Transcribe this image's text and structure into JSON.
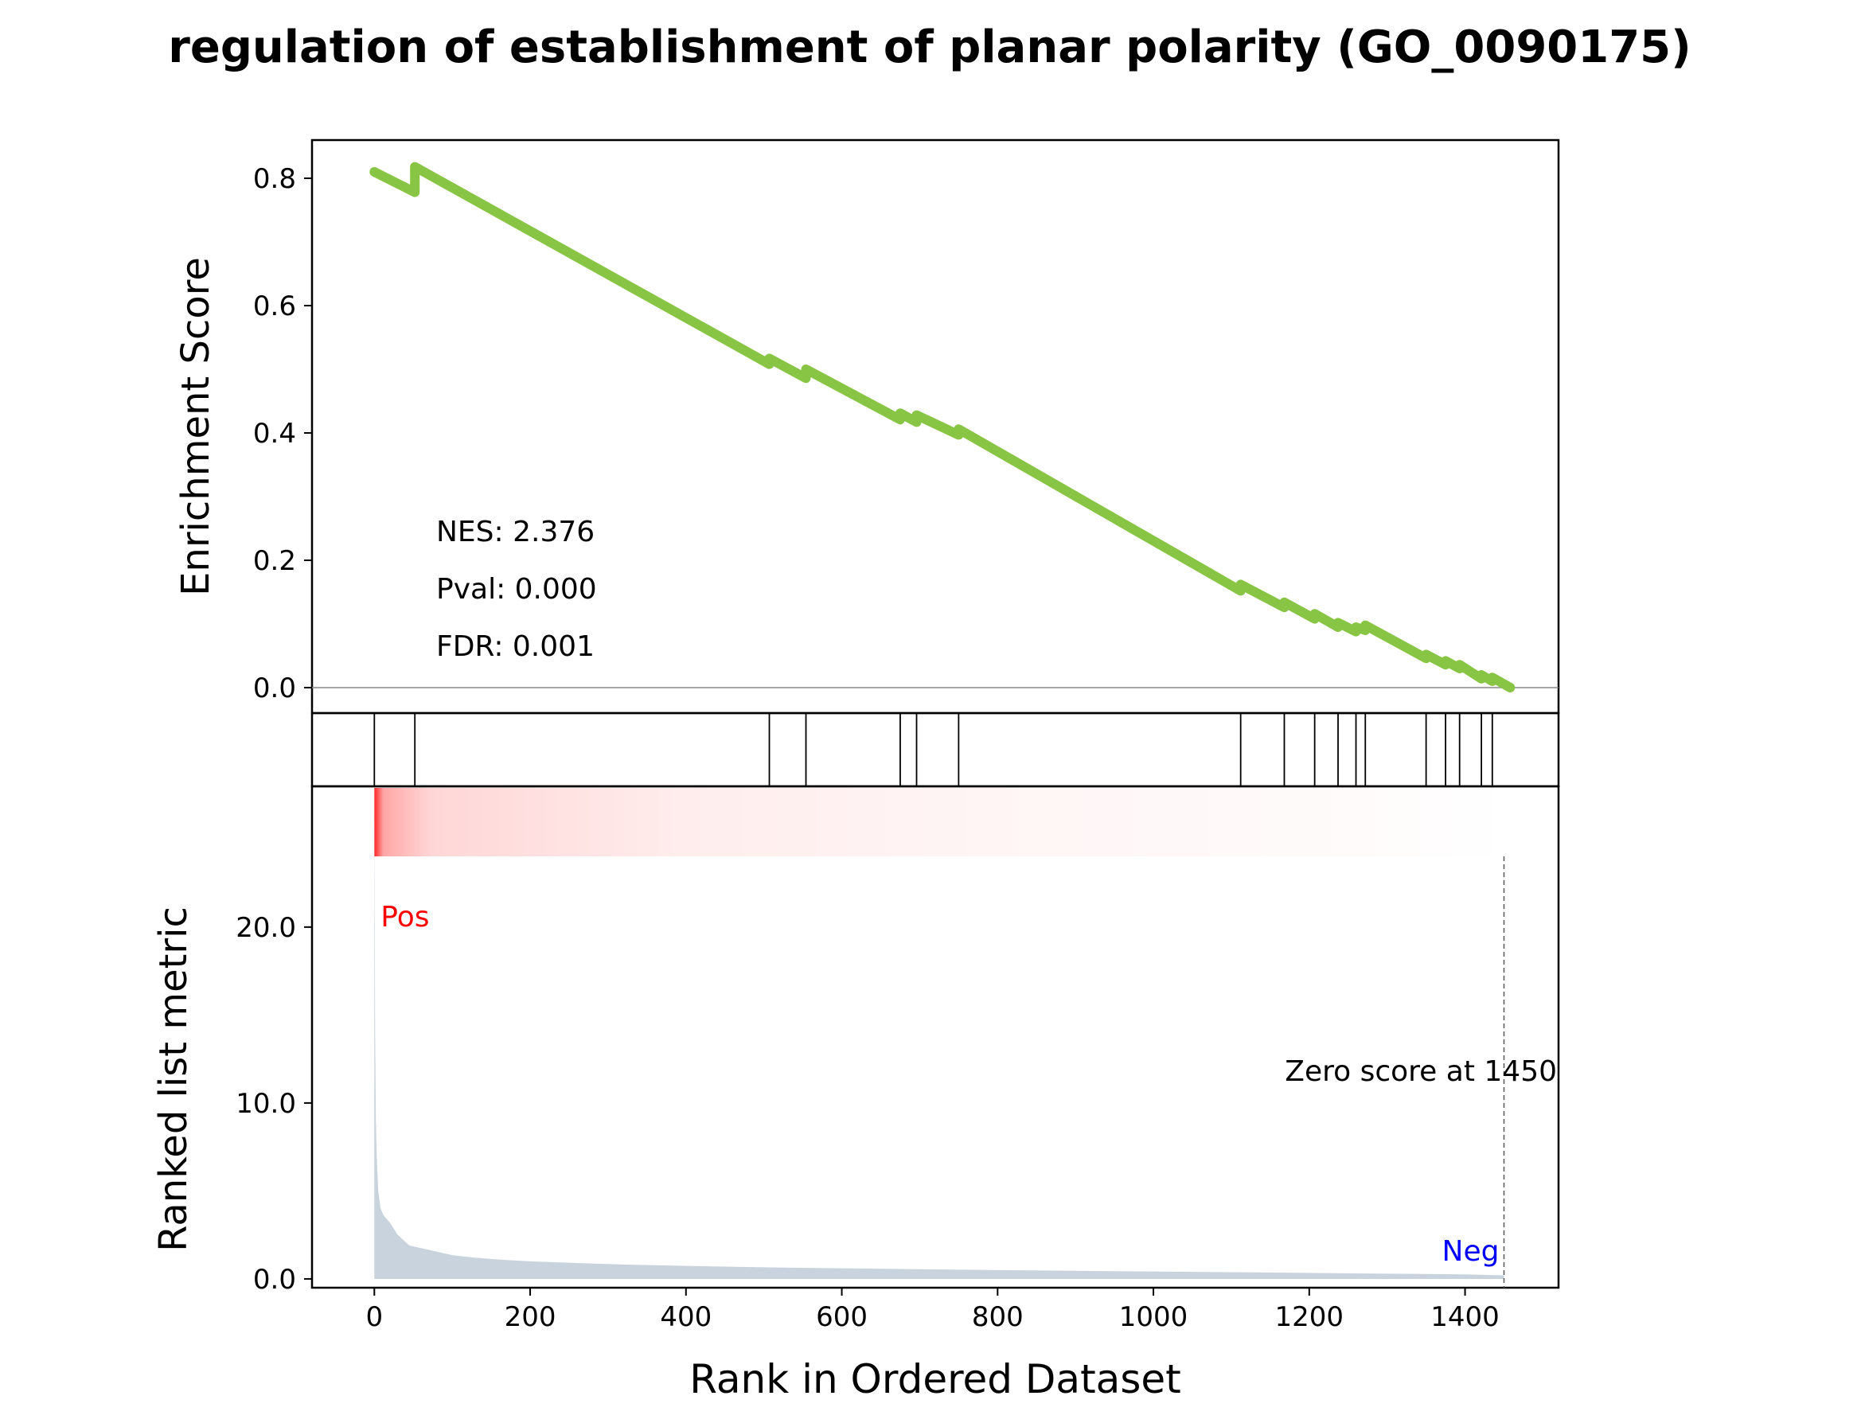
{
  "chart_data": {
    "type": "line",
    "title": "regulation of establishment of planar polarity (GO_0090175)",
    "xlabel": "Rank in Ordered Dataset",
    "ylabel_top": "Enrichment Score",
    "ylabel_bottom": "Ranked list metric",
    "xlim": [
      -80,
      1520
    ],
    "xticks": [
      0,
      200,
      400,
      600,
      800,
      1000,
      1200,
      1400
    ],
    "es_ylim": [
      -0.04,
      0.86
    ],
    "es_yticks": [
      "0.0",
      "0.2",
      "0.4",
      "0.6",
      "0.8"
    ],
    "metric_ylim": [
      -0.5,
      28
    ],
    "metric_yticks": [
      "0.0",
      "10.0",
      "20.0"
    ],
    "stats": {
      "nes": "NES: 2.376",
      "pval": "Pval: 0.000",
      "fdr": "FDR: 0.001"
    },
    "labels": {
      "pos": "Pos",
      "neg": "Neg",
      "zero_score": "Zero score at 1450"
    },
    "zero_score_rank": 1450,
    "hit_ranks": [
      0,
      52,
      507,
      554,
      675,
      696,
      750,
      1112,
      1168,
      1207,
      1237,
      1260,
      1272,
      1350,
      1375,
      1393,
      1421,
      1435
    ],
    "es_curve": {
      "x": [
        0,
        52,
        52,
        507,
        507,
        554,
        554,
        675,
        675,
        696,
        696,
        750,
        750,
        1112,
        1112,
        1168,
        1168,
        1207,
        1207,
        1237,
        1237,
        1260,
        1260,
        1272,
        1272,
        1350,
        1350,
        1375,
        1375,
        1393,
        1393,
        1421,
        1421,
        1435,
        1435,
        1458
      ],
      "y": [
        0.81,
        0.778,
        0.818,
        0.508,
        0.517,
        0.486,
        0.5,
        0.421,
        0.431,
        0.417,
        0.428,
        0.397,
        0.406,
        0.152,
        0.162,
        0.126,
        0.134,
        0.108,
        0.116,
        0.095,
        0.102,
        0.088,
        0.095,
        0.09,
        0.098,
        0.046,
        0.052,
        0.036,
        0.042,
        0.03,
        0.036,
        0.014,
        0.02,
        0.01,
        0.016,
        0.0
      ]
    },
    "metric_curve": {
      "x": [
        0,
        1,
        2,
        3,
        5,
        8,
        12,
        20,
        30,
        45,
        60,
        80,
        100,
        130,
        160,
        200,
        260,
        320,
        400,
        500,
        600,
        700,
        800,
        900,
        1000,
        1100,
        1200,
        1300,
        1400,
        1450
      ],
      "y": [
        27,
        14,
        9,
        7,
        5,
        4,
        3.6,
        3.2,
        2.5,
        1.9,
        1.75,
        1.55,
        1.35,
        1.2,
        1.1,
        1.0,
        0.9,
        0.82,
        0.74,
        0.66,
        0.6,
        0.55,
        0.5,
        0.46,
        0.42,
        0.38,
        0.34,
        0.3,
        0.26,
        0.2
      ]
    },
    "colors": {
      "es_line": "#88c544",
      "metric_fill": "#c9d3de",
      "pos_label": "#ff0000",
      "neg_label": "#0000ff",
      "heat_strong": "#ff0000"
    }
  }
}
